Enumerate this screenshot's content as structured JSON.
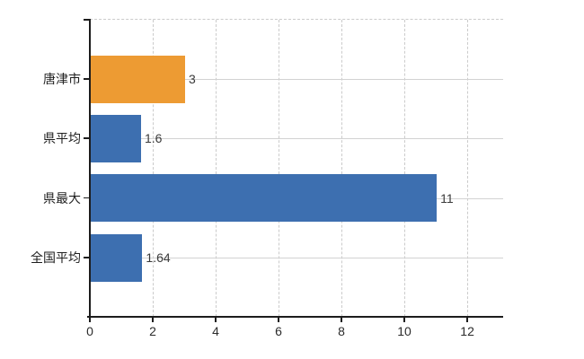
{
  "chart_data": {
    "type": "bar",
    "orientation": "horizontal",
    "title": "",
    "xlabel": "",
    "ylabel": "",
    "categories": [
      "唐津市",
      "県平均",
      "県最大",
      "全国平均"
    ],
    "values": [
      3,
      1.6,
      11,
      1.64
    ],
    "value_labels": [
      "3",
      "1.6",
      "11",
      "1.64"
    ],
    "bar_colors": [
      "#ED9B33",
      "#3D6FB0",
      "#3D6FB0",
      "#3D6FB0"
    ],
    "x_ticks": [
      0,
      2,
      4,
      6,
      8,
      10,
      12
    ],
    "x_tick_labels": [
      "0",
      "2",
      "4",
      "6",
      "8",
      "10",
      "12"
    ],
    "xlim": [
      0,
      13.14
    ],
    "grid": true,
    "legend": false,
    "colors": {
      "highlight_bar": "#ED9B33",
      "default_bar": "#3D6FB0",
      "axis": "#1c1c1c",
      "gridline_horizontal": "#d2d2d2",
      "gridline_vertical": "#cbcbcb",
      "text": "#2b2b2b",
      "background": "#ffffff"
    }
  }
}
